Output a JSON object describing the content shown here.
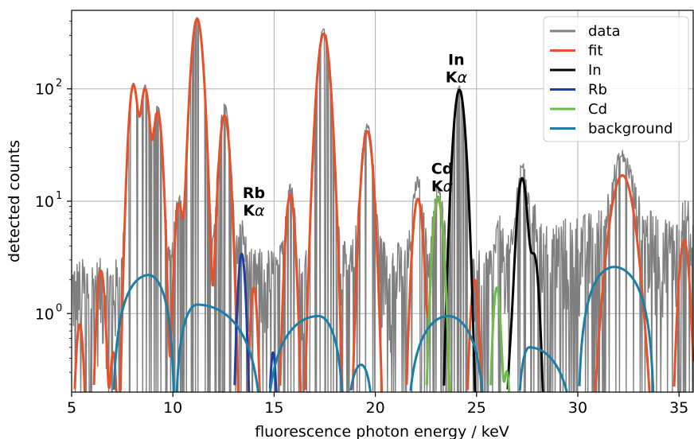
{
  "chart_data": {
    "type": "line",
    "xlabel": "fluorescence photon energy / keV",
    "ylabel": "detected counts",
    "xlim": [
      5,
      35.7
    ],
    "ylim": [
      0.2,
      500
    ],
    "y_scale": "log",
    "grid": true,
    "legend_position": "top-right",
    "x_ticks": [
      5,
      10,
      15,
      20,
      25,
      30,
      35
    ],
    "x_tick_labels": [
      "5",
      "10",
      "15",
      "20",
      "25",
      "30",
      "35"
    ],
    "y_ticks": [
      1,
      10,
      100
    ],
    "y_tick_labels": [
      "10",
      "10",
      "10"
    ],
    "y_tick_exponents": [
      "0",
      "1",
      "2"
    ],
    "annotations": [
      {
        "line1": "Rb",
        "line2": "K",
        "greek": "α",
        "x": 14.0,
        "y": 8.5
      },
      {
        "line1": "Cd",
        "line2": "K",
        "greek": "α",
        "x": 23.3,
        "y": 14.0
      },
      {
        "line1": "In",
        "line2": "K",
        "greek": "α",
        "x": 24.0,
        "y": 130
      }
    ],
    "series": [
      {
        "name": "data",
        "color": "#7f7f7f",
        "kind": "noisy",
        "base_regions": [
          [
            5.0,
            2.0
          ],
          [
            8.0,
            2.0
          ],
          [
            15.0,
            2.5
          ],
          [
            20.5,
            3.0
          ],
          [
            24.5,
            2.0
          ],
          [
            28.0,
            4.0
          ],
          [
            32.5,
            6.0
          ],
          [
            35.7,
            4.0
          ]
        ],
        "peaks": [
          [
            8.05,
            110,
            0.18
          ],
          [
            8.63,
            105,
            0.18
          ],
          [
            9.25,
            68,
            0.18
          ],
          [
            10.3,
            9.0,
            0.16
          ],
          [
            11.2,
            430,
            0.22
          ],
          [
            12.55,
            72,
            0.2
          ],
          [
            13.4,
            3.4,
            0.15
          ],
          [
            15.8,
            12,
            0.18
          ],
          [
            17.45,
            340,
            0.24
          ],
          [
            19.6,
            45,
            0.22
          ],
          [
            22.1,
            13,
            0.2
          ],
          [
            23.1,
            11,
            0.2
          ],
          [
            24.15,
            105,
            0.22
          ],
          [
            26.1,
            3.0,
            0.15
          ],
          [
            27.25,
            18,
            0.2
          ],
          [
            27.85,
            3.3,
            0.18
          ],
          [
            32.2,
            20,
            0.4
          ],
          [
            35.3,
            4.8,
            0.2
          ]
        ]
      },
      {
        "name": "fit",
        "color": "#e8502a",
        "kind": "peaks",
        "peaks": [
          [
            5.4,
            0.8,
            0.15
          ],
          [
            6.45,
            2.4,
            0.16
          ],
          [
            7.05,
            0.45,
            0.12
          ],
          [
            8.05,
            108,
            0.18
          ],
          [
            8.63,
            100,
            0.18
          ],
          [
            9.25,
            62,
            0.18
          ],
          [
            10.3,
            9.5,
            0.16
          ],
          [
            11.2,
            420,
            0.22
          ],
          [
            12.55,
            58,
            0.2
          ],
          [
            14.0,
            1.7,
            0.14
          ],
          [
            15.8,
            11.5,
            0.18
          ],
          [
            17.45,
            310,
            0.24
          ],
          [
            19.6,
            42,
            0.22
          ],
          [
            22.1,
            10.5,
            0.2
          ],
          [
            23.1,
            10.5,
            0.2
          ],
          [
            24.9,
            2.0,
            0.16
          ],
          [
            32.2,
            17,
            0.45
          ],
          [
            35.25,
            4.5,
            0.2
          ]
        ]
      },
      {
        "name": "In",
        "color": "#000000",
        "kind": "peaks",
        "peaks": [
          [
            24.15,
            98,
            0.22
          ],
          [
            26.7,
            0.35,
            0.14
          ],
          [
            27.25,
            16,
            0.2
          ],
          [
            27.85,
            3.2,
            0.18
          ]
        ]
      },
      {
        "name": "Rb",
        "color": "#1f3f9f",
        "kind": "peaks",
        "peaks": [
          [
            13.4,
            3.4,
            0.15
          ],
          [
            14.95,
            0.45,
            0.12
          ]
        ]
      },
      {
        "name": "Cd",
        "color": "#6abf4b",
        "kind": "peaks",
        "peaks": [
          [
            23.1,
            11,
            0.2
          ],
          [
            26.0,
            1.7,
            0.15
          ],
          [
            26.5,
            0.3,
            0.12
          ]
        ]
      },
      {
        "name": "background",
        "color": "#1a7fa8",
        "kind": "hump",
        "humps": [
          [
            7.0,
            8.8,
            10.1,
            2.2
          ],
          [
            10.1,
            11.2,
            14.5,
            1.2
          ],
          [
            14.5,
            17.2,
            18.5,
            0.95
          ],
          [
            18.5,
            19.3,
            20.0,
            0.35
          ],
          [
            21.5,
            23.6,
            25.5,
            0.95
          ],
          [
            27.0,
            27.6,
            30.0,
            0.5
          ],
          [
            30.0,
            31.8,
            33.8,
            2.6
          ]
        ]
      }
    ]
  }
}
